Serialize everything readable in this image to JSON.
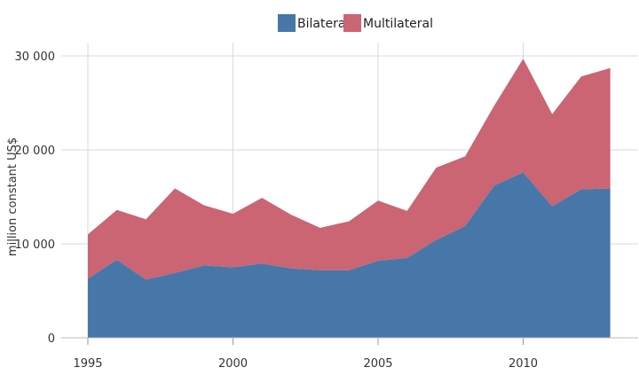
{
  "chart_data": {
    "type": "area",
    "stacked": true,
    "x": [
      1995,
      1996,
      1997,
      1998,
      1999,
      2000,
      2001,
      2002,
      2003,
      2004,
      2005,
      2006,
      2007,
      2008,
      2009,
      2010,
      2011,
      2012,
      2013
    ],
    "series": [
      {
        "name": "Bilateral",
        "color": "#4677a8",
        "values": [
          6300,
          8300,
          6200,
          6900,
          7700,
          7500,
          7900,
          7400,
          7200,
          7200,
          8200,
          8500,
          10400,
          11900,
          16200,
          17600,
          14000,
          15800,
          15900
        ]
      },
      {
        "name": "Multilateral",
        "color": "#cb6473",
        "values": [
          4700,
          5300,
          6400,
          9000,
          6400,
          5700,
          7000,
          5700,
          4500,
          5200,
          6400,
          5000,
          7700,
          7400,
          8500,
          12100,
          9800,
          12000,
          12800
        ]
      }
    ],
    "ylabel": "million constant US$",
    "xlabel": "",
    "xticks": [
      1995,
      2000,
      2005,
      2010
    ],
    "yticks": [
      0,
      10000,
      20000,
      30000
    ],
    "ytick_labels": [
      "0",
      "10 000",
      "20 000",
      "30 000"
    ],
    "xlim": [
      1995,
      2014
    ],
    "ylim": [
      0,
      31000
    ],
    "grid": true,
    "legend_position": "top-center"
  }
}
